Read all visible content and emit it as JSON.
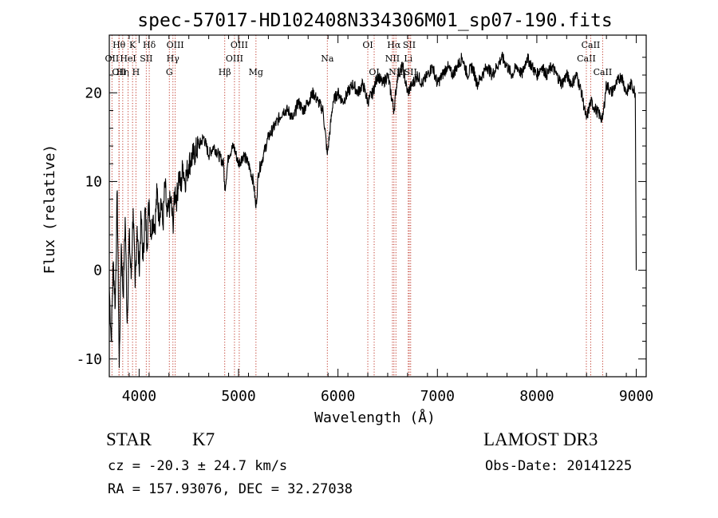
{
  "chart_data": {
    "type": "line",
    "title": "spec-57017-HD102408N334306M01_sp07-190.fits",
    "xlabel": "Wavelength (Å)",
    "ylabel": "Flux (relative)",
    "xlim": [
      3700,
      9100
    ],
    "ylim": [
      -12,
      26.5
    ],
    "x_ticks": [
      4000,
      5000,
      6000,
      7000,
      8000,
      9000
    ],
    "y_ticks": [
      -10,
      0,
      10,
      20
    ],
    "grid": false,
    "series": [
      {
        "name": "flux",
        "x": [
          3700,
          3720,
          3740,
          3760,
          3780,
          3800,
          3820,
          3840,
          3860,
          3880,
          3900,
          3920,
          3940,
          3960,
          3980,
          4000,
          4020,
          4040,
          4060,
          4080,
          4100,
          4120,
          4140,
          4160,
          4180,
          4200,
          4220,
          4240,
          4260,
          4280,
          4300,
          4320,
          4340,
          4360,
          4380,
          4400,
          4420,
          4440,
          4460,
          4480,
          4500,
          4550,
          4600,
          4650,
          4700,
          4750,
          4800,
          4850,
          4861,
          4900,
          4950,
          5000,
          5050,
          5100,
          5150,
          5175,
          5200,
          5250,
          5300,
          5350,
          5400,
          5450,
          5500,
          5550,
          5600,
          5650,
          5700,
          5750,
          5800,
          5850,
          5893,
          5950,
          6000,
          6050,
          6100,
          6150,
          6200,
          6250,
          6300,
          6350,
          6400,
          6450,
          6500,
          6563,
          6600,
          6650,
          6700,
          6750,
          6800,
          6850,
          6900,
          6950,
          7000,
          7050,
          7100,
          7150,
          7200,
          7250,
          7300,
          7350,
          7400,
          7450,
          7500,
          7550,
          7600,
          7650,
          7700,
          7750,
          7800,
          7850,
          7900,
          7950,
          8000,
          8050,
          8100,
          8150,
          8200,
          8250,
          8300,
          8350,
          8400,
          8450,
          8498,
          8542,
          8600,
          8662,
          8700,
          8750,
          8800,
          8850,
          8900,
          8950,
          8990,
          9000
        ],
        "values": [
          -2,
          -8,
          1,
          -4,
          9,
          -11,
          3,
          -3,
          6,
          -6,
          4,
          -1,
          7,
          -2,
          5,
          0,
          6,
          1,
          7,
          3,
          8,
          4,
          6,
          5,
          9,
          6,
          8,
          5,
          10,
          6,
          7,
          8,
          5,
          9,
          8,
          11,
          9,
          12,
          10,
          11,
          12,
          13,
          14,
          15,
          13,
          14,
          13,
          12,
          9,
          13,
          14,
          12,
          13,
          12,
          10,
          7,
          11,
          13,
          15,
          16,
          17,
          18,
          18,
          17,
          19,
          18,
          19,
          20,
          19,
          18,
          13,
          19,
          20,
          19,
          20,
          21,
          20,
          21,
          19,
          20,
          22,
          21,
          22,
          18,
          22,
          23,
          20,
          21,
          22,
          21,
          22,
          23,
          21,
          22,
          23,
          22,
          23,
          24,
          22,
          23,
          21,
          22,
          23,
          22,
          23,
          24,
          23,
          22,
          23,
          22,
          24,
          23,
          22,
          23,
          22,
          23,
          22,
          21,
          22,
          21,
          22,
          20,
          17,
          19,
          18,
          17,
          21,
          20,
          21,
          22,
          20,
          21,
          20,
          0
        ]
      }
    ],
    "line_marks": [
      {
        "wl": 3727,
        "text": "OII",
        "row": 2
      },
      {
        "wl": 3798,
        "text": "Hθ",
        "row": 1
      },
      {
        "wl": 3798,
        "text": "OII",
        "row": 3
      },
      {
        "wl": 3835,
        "text": "Hη",
        "row": 3
      },
      {
        "wl": 3889,
        "text": "HeI",
        "row": 2
      },
      {
        "wl": 3934,
        "text": "K",
        "row": 1
      },
      {
        "wl": 3968,
        "text": "H",
        "row": 3
      },
      {
        "wl": 4072,
        "text": "SII",
        "row": 2
      },
      {
        "wl": 4102,
        "text": "Hδ",
        "row": 1
      },
      {
        "wl": 4304,
        "text": "G",
        "row": 3
      },
      {
        "wl": 4340,
        "text": "Hγ",
        "row": 2
      },
      {
        "wl": 4363,
        "text": "OIII",
        "row": 1
      },
      {
        "wl": 4861,
        "text": "Hβ",
        "row": 3
      },
      {
        "wl": 4959,
        "text": "OIII",
        "row": 2
      },
      {
        "wl": 5007,
        "text": "OIII",
        "row": 1
      },
      {
        "wl": 5175,
        "text": "Mg",
        "row": 3
      },
      {
        "wl": 5893,
        "text": "Na",
        "row": 2
      },
      {
        "wl": 6300,
        "text": "OI",
        "row": 1
      },
      {
        "wl": 6364,
        "text": "OI",
        "row": 3
      },
      {
        "wl": 6548,
        "text": "NII",
        "row": 2
      },
      {
        "wl": 6563,
        "text": "Hα",
        "row": 1
      },
      {
        "wl": 6583,
        "text": "NII",
        "row": 3
      },
      {
        "wl": 6707,
        "text": "Li",
        "row": 2
      },
      {
        "wl": 6717,
        "text": "SII",
        "row": 1
      },
      {
        "wl": 6731,
        "text": "SII",
        "row": 3
      },
      {
        "wl": 8498,
        "text": "CaII",
        "row": 2
      },
      {
        "wl": 8542,
        "text": "CaII",
        "row": 1
      },
      {
        "wl": 8662,
        "text": "CaII",
        "row": 3
      }
    ]
  },
  "info": {
    "object_class": "STAR",
    "subclass": "K7",
    "redshift": "cz = -20.3 ± 24.7 km/s",
    "coords": "RA = 157.93076, DEC =  32.27038",
    "survey": "LAMOST DR3",
    "obs_date": "Obs-Date: 20141225"
  }
}
